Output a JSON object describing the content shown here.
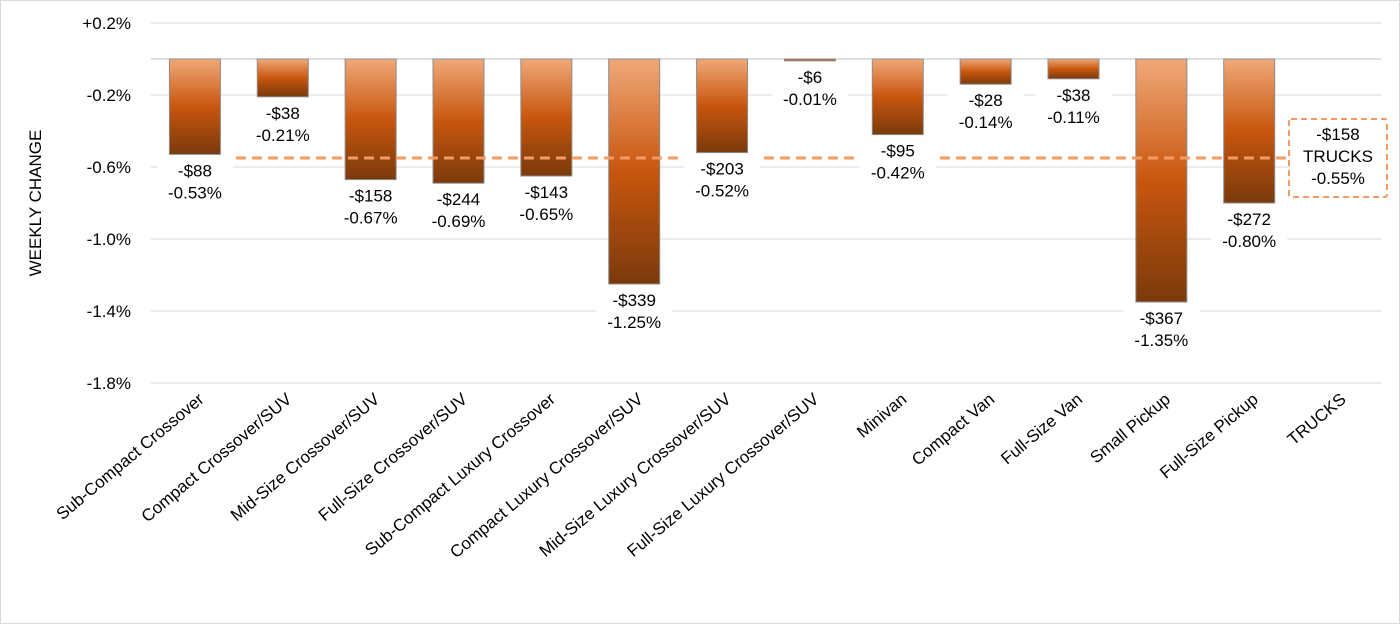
{
  "chart_data": {
    "type": "bar",
    "title": "",
    "ylabel": "WEEKLY CHANGE",
    "xlabel": "",
    "ylim": [
      -1.8,
      0.2
    ],
    "y_ticks": [
      0.2,
      -0.2,
      -0.6,
      -1.0,
      -1.4,
      -1.8
    ],
    "y_tick_labels": [
      "+0.2%",
      "-0.2%",
      "-0.6%",
      "-1.0%",
      "-1.4%",
      "-1.8%"
    ],
    "grid": true,
    "categories": [
      "Sub-Compact Crossover",
      "Compact Crossover/SUV",
      "Mid-Size Crossover/SUV",
      "Full-Size Crossover/SUV",
      "Sub-Compact Luxury Crossover",
      "Compact Luxury Crossover/SUV",
      "Mid-Size Luxury Crossover/SUV",
      "Full-Size Luxury Crossover/SUV",
      "Minivan",
      "Compact Van",
      "Full-Size Van",
      "Small Pickup",
      "Full-Size Pickup",
      "TRUCKS"
    ],
    "values": [
      -0.53,
      -0.21,
      -0.67,
      -0.69,
      -0.65,
      -1.25,
      -0.52,
      -0.01,
      -0.42,
      -0.14,
      -0.11,
      -1.35,
      -0.8,
      null
    ],
    "dollar_labels": [
      "-$88",
      "-$38",
      "-$158",
      "-$244",
      "-$143",
      "-$339",
      "-$203",
      "-$6",
      "-$95",
      "-$28",
      "-$38",
      "-$367",
      "-$272",
      ""
    ],
    "percent_labels": [
      "-0.53%",
      "-0.21%",
      "-0.67%",
      "-0.69%",
      "-0.65%",
      "-1.25%",
      "-0.52%",
      "-0.01%",
      "-0.42%",
      "-0.14%",
      "-0.11%",
      "-1.35%",
      "-0.80%",
      ""
    ],
    "reference_line": {
      "value": -0.55,
      "dollar_label": "-$158",
      "name": "TRUCKS",
      "percent_label": "-0.55%"
    },
    "colors": {
      "bar_top": "#F0A878",
      "bar_mid": "#C8560E",
      "bar_bottom": "#7A3A0C",
      "bar_border": "#8C8C8C",
      "reference_line": "#F29B62",
      "grid": "#D9D9D9"
    }
  }
}
